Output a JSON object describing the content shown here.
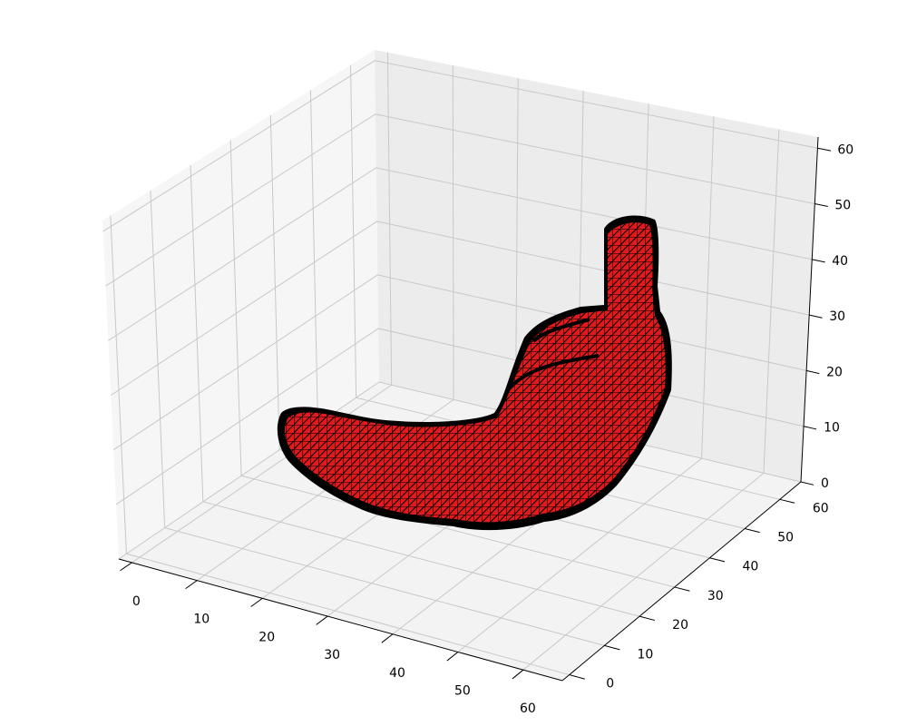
{
  "chart_data": {
    "type": "3d-mesh-surface",
    "title": "",
    "xlabel": "",
    "ylabel": "",
    "zlabel": "",
    "x_ticks": [
      "0",
      "10",
      "20",
      "30",
      "40",
      "50",
      "60"
    ],
    "y_ticks": [
      "0",
      "10",
      "20",
      "30",
      "40",
      "50",
      "60"
    ],
    "z_ticks": [
      "0",
      "10",
      "20",
      "30",
      "40",
      "50",
      "60"
    ],
    "xlim": [
      -2,
      66
    ],
    "ylim": [
      -2,
      66
    ],
    "zlim": [
      0,
      62
    ],
    "grid": true,
    "face_color": "#e31a1c",
    "edge_color": "#000000",
    "pane_colors": {
      "left": "#f6f6f6",
      "right": "#ececec",
      "floor": "#f3f3f3"
    },
    "grid_color": "#c8c8c8"
  }
}
